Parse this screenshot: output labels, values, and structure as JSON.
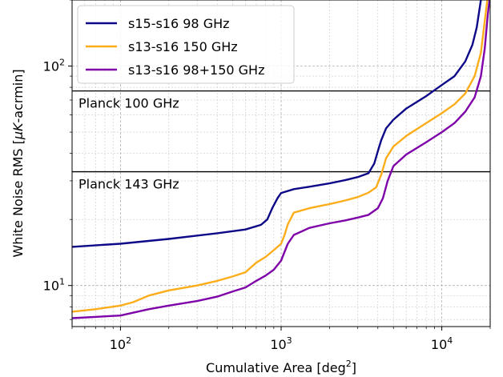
{
  "chart_data": {
    "type": "line",
    "xlabel": "Cumulative Area [deg",
    "xlabel_sup": "2",
    "xlabel_tail": "]",
    "ylabel_pre": "White Noise RMS [",
    "ylabel_mu": "μ",
    "ylabel_k": "K",
    "ylabel_post": "-acrmin]",
    "x_scale": "log",
    "y_scale": "log",
    "xlim": [
      50,
      20000
    ],
    "ylim": [
      6.5,
      200
    ],
    "grid": true,
    "legend_position": "top-left",
    "x_ticks": [
      {
        "value": 100,
        "base": "10",
        "exp": "2"
      },
      {
        "value": 1000,
        "base": "10",
        "exp": "3"
      },
      {
        "value": 10000,
        "base": "10",
        "exp": "4"
      }
    ],
    "y_ticks": [
      {
        "value": 10,
        "base": "10",
        "exp": "1"
      },
      {
        "value": 100,
        "base": "10",
        "exp": "2"
      }
    ],
    "reference_lines": [
      {
        "label": "Planck 100 GHz",
        "y": 77,
        "color": "#000000"
      },
      {
        "label": "Planck 143 GHz",
        "y": 33,
        "color": "#000000"
      }
    ],
    "series": [
      {
        "name": "s15-s16 98 GHz",
        "color": "#0d0887",
        "points": [
          [
            50,
            15
          ],
          [
            100,
            15.5
          ],
          [
            200,
            16.3
          ],
          [
            400,
            17.3
          ],
          [
            600,
            18
          ],
          [
            750,
            18.9
          ],
          [
            820,
            20
          ],
          [
            880,
            22.5
          ],
          [
            950,
            25
          ],
          [
            1000,
            26.4
          ],
          [
            1200,
            27.5
          ],
          [
            1500,
            28.2
          ],
          [
            2000,
            29.2
          ],
          [
            2500,
            30.2
          ],
          [
            3000,
            31.2
          ],
          [
            3500,
            32.5
          ],
          [
            3800,
            36
          ],
          [
            4000,
            41
          ],
          [
            4200,
            46
          ],
          [
            4500,
            52
          ],
          [
            5000,
            57
          ],
          [
            6000,
            64
          ],
          [
            8000,
            73
          ],
          [
            10000,
            82
          ],
          [
            12000,
            90
          ],
          [
            14000,
            105
          ],
          [
            15500,
            125
          ],
          [
            16500,
            150
          ],
          [
            17500,
            200
          ]
        ]
      },
      {
        "name": "s13-s16 150 GHz",
        "color": "#fdad1a",
        "points": [
          [
            50,
            7.6
          ],
          [
            70,
            7.8
          ],
          [
            100,
            8.1
          ],
          [
            120,
            8.4
          ],
          [
            150,
            9
          ],
          [
            200,
            9.5
          ],
          [
            300,
            10
          ],
          [
            400,
            10.5
          ],
          [
            500,
            11
          ],
          [
            600,
            11.5
          ],
          [
            700,
            12.7
          ],
          [
            800,
            13.5
          ],
          [
            900,
            14.5
          ],
          [
            1000,
            15.5
          ],
          [
            1050,
            17
          ],
          [
            1100,
            19
          ],
          [
            1200,
            21.5
          ],
          [
            1500,
            22.5
          ],
          [
            2000,
            23.5
          ],
          [
            2500,
            24.4
          ],
          [
            3000,
            25.3
          ],
          [
            3500,
            26.5
          ],
          [
            3900,
            28
          ],
          [
            4200,
            32
          ],
          [
            4500,
            38
          ],
          [
            5000,
            43
          ],
          [
            6000,
            48
          ],
          [
            8000,
            55
          ],
          [
            10000,
            61
          ],
          [
            12000,
            67
          ],
          [
            14000,
            75
          ],
          [
            16000,
            90
          ],
          [
            17500,
            115
          ],
          [
            18500,
            160
          ],
          [
            19200,
            200
          ]
        ]
      },
      {
        "name": "s13-s16 98+150 GHz",
        "color": "#7e03a8",
        "points": [
          [
            50,
            7.1
          ],
          [
            100,
            7.3
          ],
          [
            150,
            7.8
          ],
          [
            200,
            8.1
          ],
          [
            300,
            8.5
          ],
          [
            400,
            8.9
          ],
          [
            500,
            9.4
          ],
          [
            600,
            9.8
          ],
          [
            700,
            10.5
          ],
          [
            800,
            11.1
          ],
          [
            900,
            11.8
          ],
          [
            1000,
            13
          ],
          [
            1100,
            15.5
          ],
          [
            1200,
            17
          ],
          [
            1500,
            18.3
          ],
          [
            2000,
            19.2
          ],
          [
            2500,
            19.8
          ],
          [
            3000,
            20.4
          ],
          [
            3500,
            21
          ],
          [
            4000,
            22.5
          ],
          [
            4300,
            25
          ],
          [
            4600,
            30
          ],
          [
            5000,
            35
          ],
          [
            6000,
            39.5
          ],
          [
            8000,
            45
          ],
          [
            10000,
            50
          ],
          [
            12000,
            55
          ],
          [
            14000,
            62
          ],
          [
            16000,
            72
          ],
          [
            17500,
            90
          ],
          [
            18500,
            120
          ],
          [
            19300,
            170
          ],
          [
            19800,
            200
          ]
        ]
      }
    ]
  }
}
